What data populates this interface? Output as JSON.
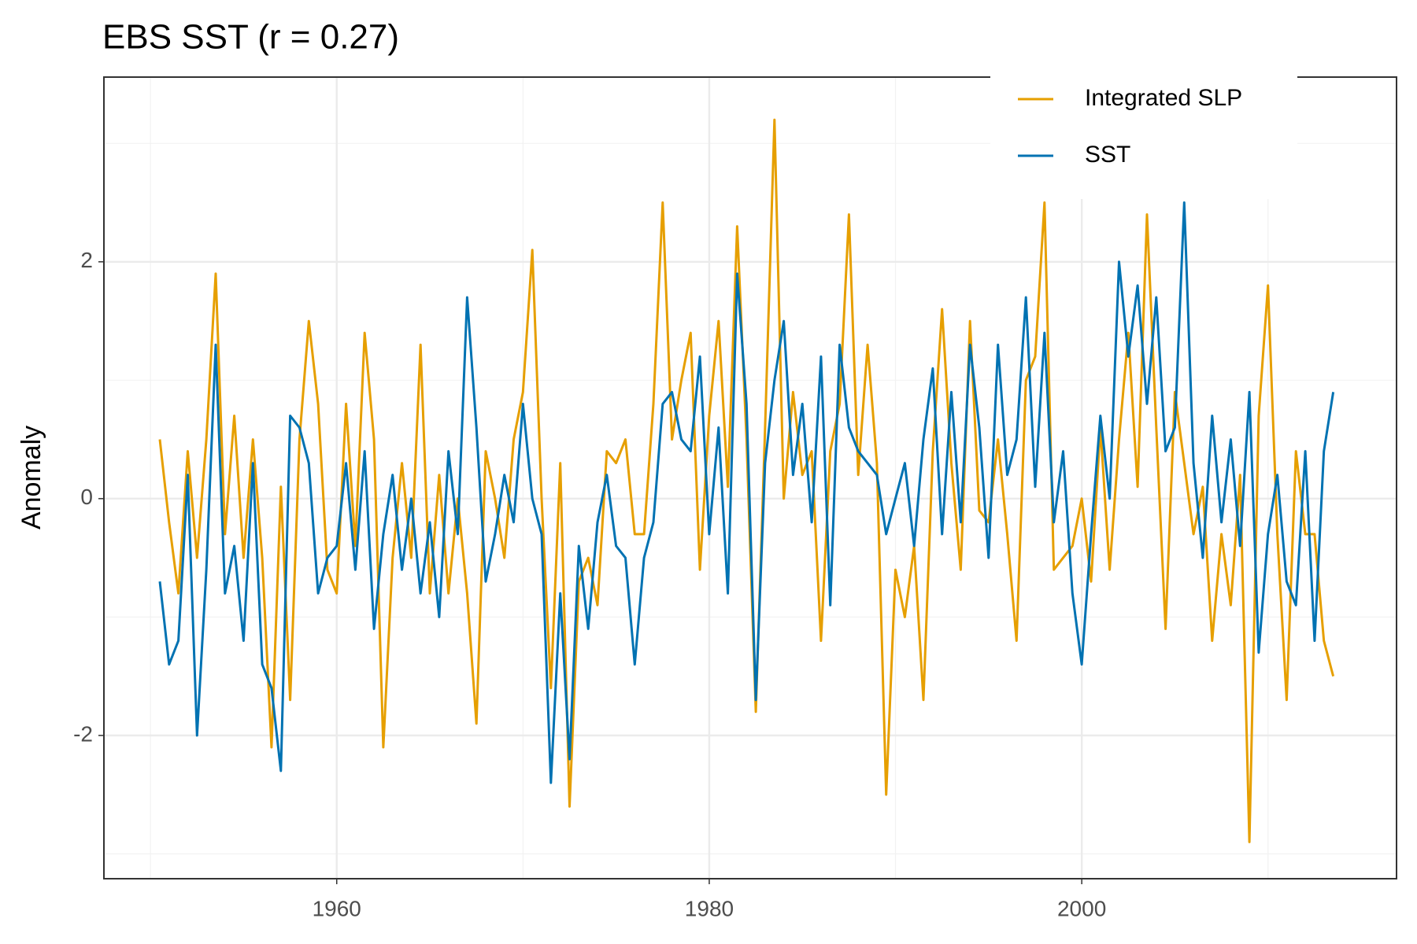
{
  "chart_data": {
    "type": "line",
    "title": "EBS SST (r = 0.27)",
    "ylabel": "Anomaly",
    "x": [
      1950.5,
      1951,
      1951.5,
      1952,
      1952.5,
      1953,
      1953.5,
      1954,
      1954.5,
      1955,
      1955.5,
      1956,
      1956.5,
      1957,
      1957.5,
      1958,
      1958.5,
      1959,
      1959.5,
      1960,
      1960.5,
      1961,
      1961.5,
      1962,
      1962.5,
      1963,
      1963.5,
      1964,
      1964.5,
      1965,
      1965.5,
      1966,
      1966.5,
      1967,
      1967.5,
      1968,
      1968.5,
      1969,
      1969.5,
      1970,
      1970.5,
      1971,
      1971.5,
      1972,
      1972.5,
      1973,
      1973.5,
      1974,
      1974.5,
      1975,
      1975.5,
      1976,
      1976.5,
      1977,
      1977.5,
      1978,
      1978.5,
      1979,
      1979.5,
      1980,
      1980.5,
      1981,
      1981.5,
      1982,
      1982.5,
      1983,
      1983.5,
      1984,
      1984.5,
      1985,
      1985.5,
      1986,
      1986.5,
      1987,
      1987.5,
      1988,
      1988.5,
      1989,
      1989.5,
      1990,
      1990.5,
      1991,
      1991.5,
      1992,
      1992.5,
      1993,
      1993.5,
      1994,
      1994.5,
      1995,
      1995.5,
      1996,
      1996.5,
      1997,
      1997.5,
      1998,
      1998.5,
      1999,
      1999.5,
      2000,
      2000.5,
      2001,
      2001.5,
      2002,
      2002.5,
      2003,
      2003.5,
      2004,
      2004.5,
      2005,
      2005.5,
      2006,
      2006.5,
      2007,
      2007.5,
      2008,
      2008.5,
      2009,
      2009.5,
      2010,
      2010.5,
      2011,
      2011.5,
      2012,
      2012.5,
      2013,
      2013.5
    ],
    "series": [
      {
        "name": "Integrated SLP",
        "color": "#E69F00",
        "values": [
          0.5,
          -0.2,
          -0.8,
          0.4,
          -0.5,
          0.5,
          1.9,
          -0.3,
          0.7,
          -0.5,
          0.5,
          -0.5,
          -2.1,
          0.1,
          -1.7,
          0.5,
          1.5,
          0.8,
          -0.6,
          -0.8,
          0.8,
          -0.4,
          1.4,
          0.5,
          -2.1,
          -0.5,
          0.3,
          -0.5,
          1.3,
          -0.8,
          0.2,
          -0.8,
          0.0,
          -0.8,
          -1.9,
          0.4,
          0.0,
          -0.5,
          0.5,
          0.9,
          2.1,
          0.0,
          -1.6,
          0.3,
          -2.6,
          -0.7,
          -0.5,
          -0.9,
          0.4,
          0.3,
          0.5,
          -0.3,
          -0.3,
          0.8,
          2.5,
          0.5,
          1.0,
          1.4,
          -0.6,
          0.7,
          1.5,
          0.1,
          2.3,
          0.5,
          -1.8,
          0.6,
          3.2,
          0.0,
          0.9,
          0.2,
          0.4,
          -1.2,
          0.4,
          0.8,
          2.4,
          0.2,
          1.3,
          0.3,
          -2.5,
          -0.6,
          -1.0,
          -0.4,
          -1.7,
          0.4,
          1.6,
          0.3,
          -0.6,
          1.5,
          -0.1,
          -0.2,
          0.5,
          -0.3,
          -1.2,
          1.0,
          1.2,
          2.5,
          -0.6,
          -0.5,
          -0.4,
          0.0,
          -0.7,
          0.6,
          -0.6,
          0.5,
          1.4,
          0.1,
          2.4,
          0.6,
          -1.1,
          0.9,
          0.3,
          -0.3,
          0.1,
          -1.2,
          -0.3,
          -0.9,
          0.2,
          -2.9,
          0.7,
          1.8,
          -0.3,
          -1.7,
          0.4,
          -0.3,
          -0.3,
          -1.2,
          -1.5
        ]
      },
      {
        "name": "SST",
        "color": "#0072B2",
        "values": [
          -0.7,
          -1.4,
          -1.2,
          0.2,
          -2.0,
          -0.6,
          1.3,
          -0.8,
          -0.4,
          -1.2,
          0.3,
          -1.4,
          -1.6,
          -2.3,
          0.7,
          0.6,
          0.3,
          -0.8,
          -0.5,
          -0.4,
          0.3,
          -0.6,
          0.4,
          -1.1,
          -0.3,
          0.2,
          -0.6,
          0.0,
          -0.8,
          -0.2,
          -1.0,
          0.4,
          -0.3,
          1.7,
          0.6,
          -0.7,
          -0.3,
          0.2,
          -0.2,
          0.8,
          0.0,
          -0.3,
          -2.4,
          -0.8,
          -2.2,
          -0.4,
          -1.1,
          -0.2,
          0.2,
          -0.4,
          -0.5,
          -1.4,
          -0.5,
          -0.2,
          0.8,
          0.9,
          0.5,
          0.4,
          1.2,
          -0.3,
          0.6,
          -0.8,
          1.9,
          0.8,
          -1.7,
          0.3,
          1.0,
          1.5,
          0.2,
          0.8,
          -0.2,
          1.2,
          -0.9,
          1.3,
          0.6,
          0.4,
          0.3,
          0.2,
          -0.3,
          0.0,
          0.3,
          -0.4,
          0.5,
          1.1,
          -0.3,
          0.9,
          -0.2,
          1.3,
          0.6,
          -0.5,
          1.3,
          0.2,
          0.5,
          1.7,
          0.1,
          1.4,
          -0.2,
          0.4,
          -0.8,
          -1.4,
          -0.3,
          0.7,
          0.0,
          2.0,
          1.2,
          1.8,
          0.8,
          1.7,
          0.4,
          0.6,
          2.5,
          0.3,
          -0.5,
          0.7,
          -0.2,
          0.5,
          -0.4,
          0.9,
          -1.3,
          -0.3,
          0.2,
          -0.7,
          -0.9,
          0.4,
          -1.2,
          0.4,
          0.9
        ]
      }
    ],
    "xlim": [
      1947.5,
      2016.9
    ],
    "ylim": [
      -3.21,
      3.56
    ],
    "xticks": [
      1960,
      1980,
      2000
    ],
    "yticks": [
      -2,
      0,
      2
    ],
    "xminor": [
      1950,
      1970,
      1990,
      2010
    ],
    "yminor": [
      -3,
      -1,
      1,
      3
    ],
    "grid": true,
    "legend": "top-right"
  }
}
